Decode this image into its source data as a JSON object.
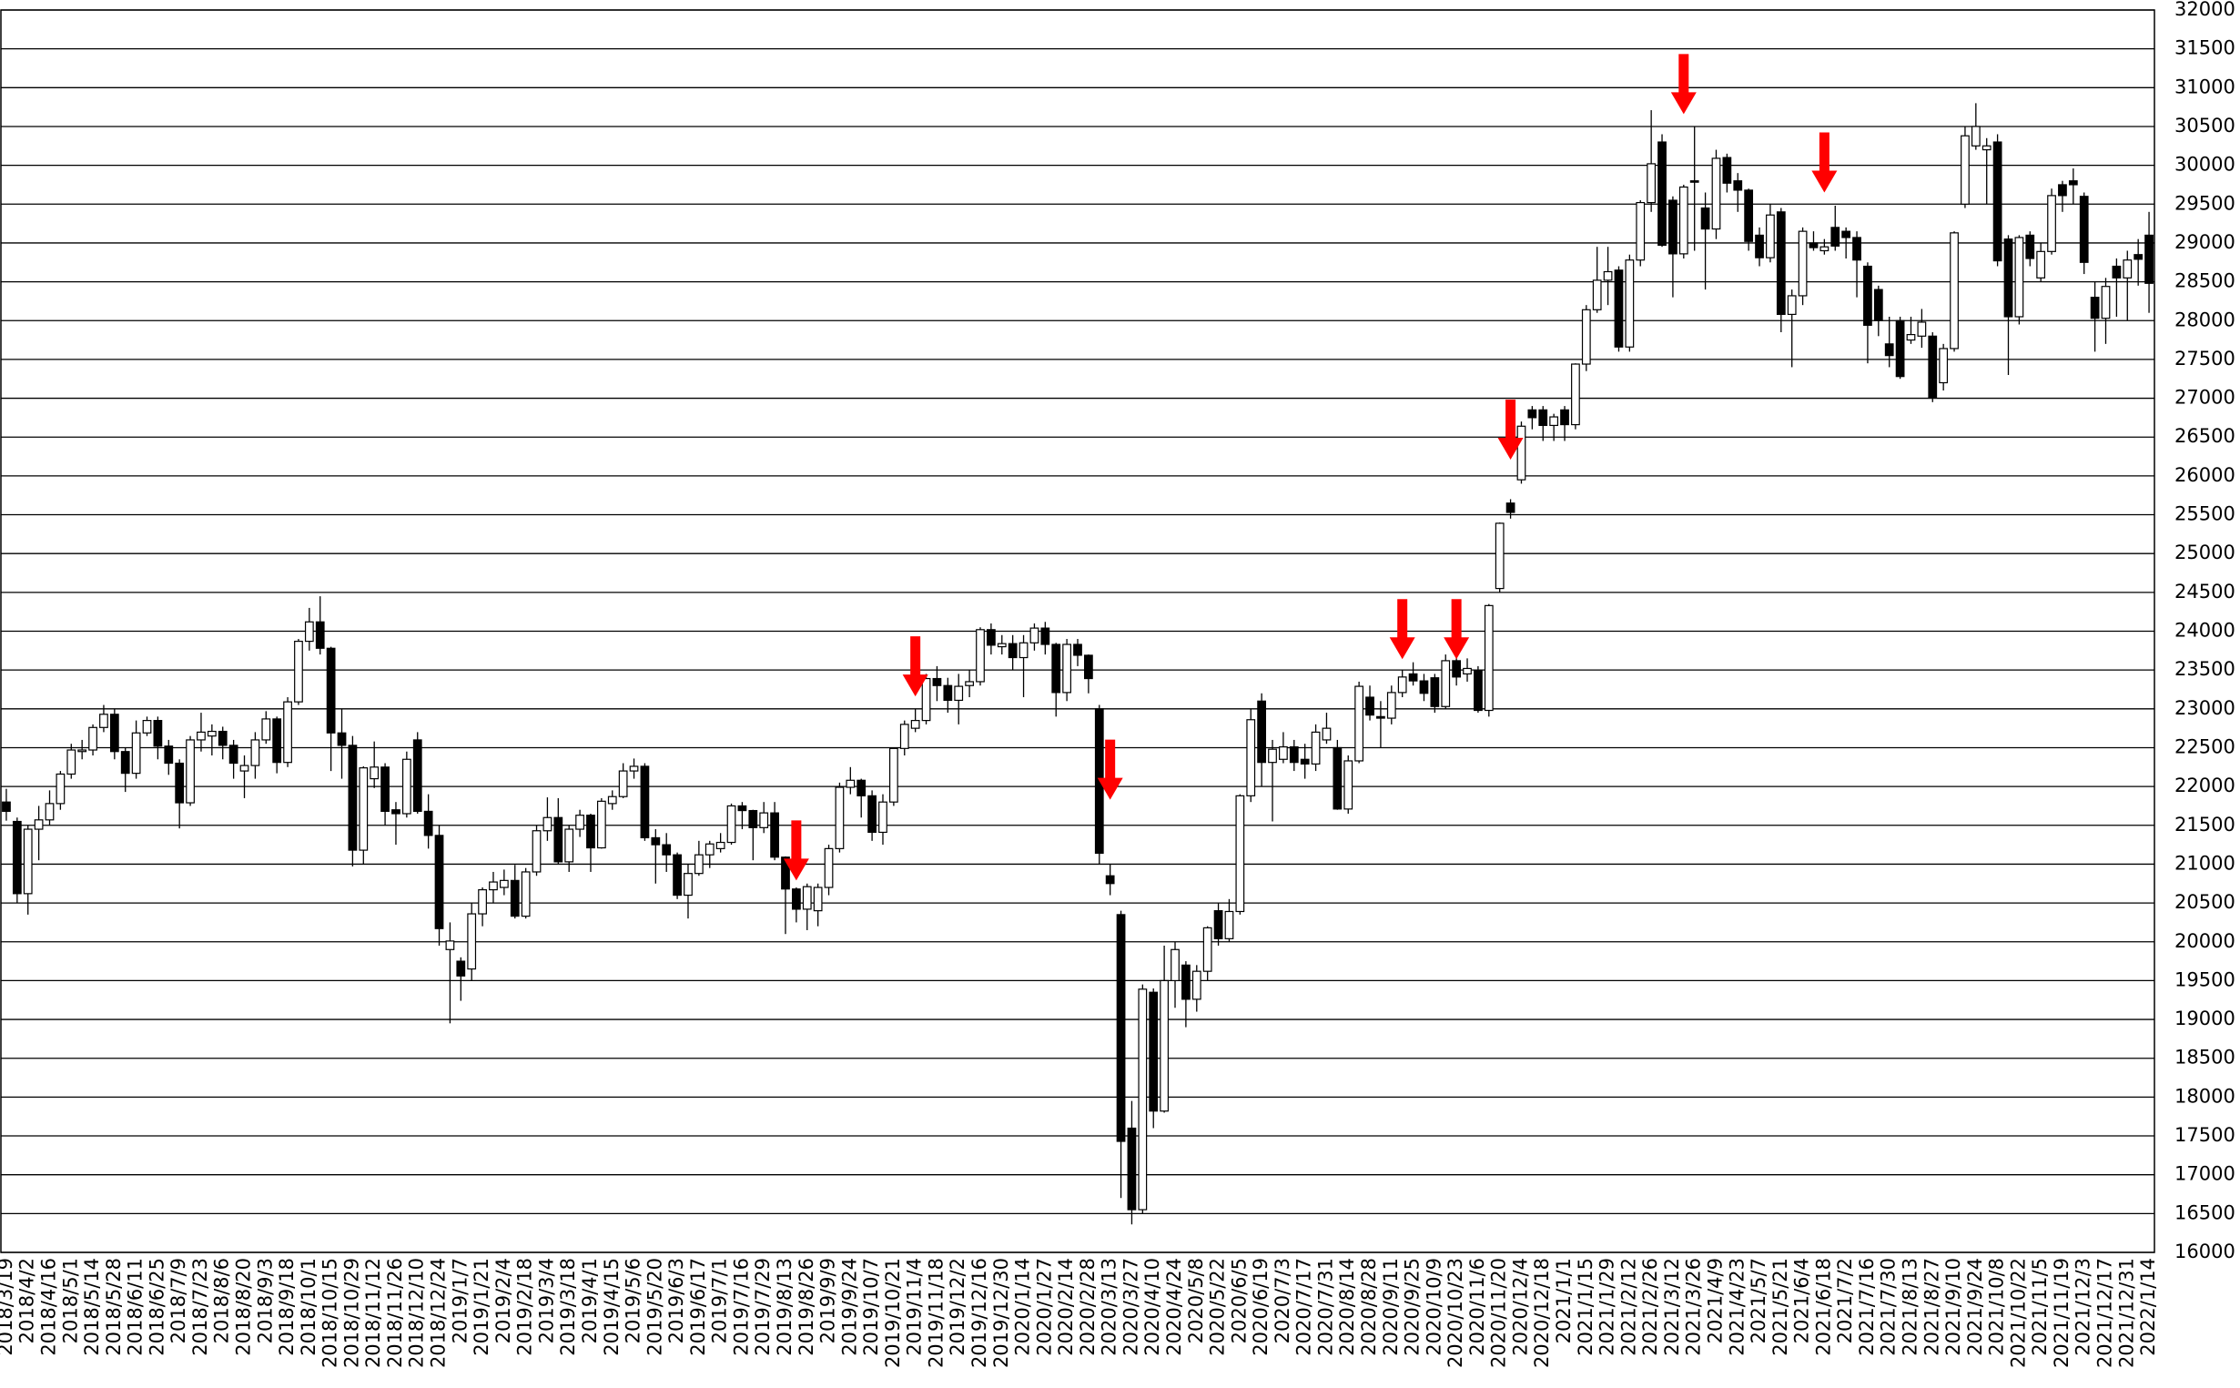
{
  "chart_data": {
    "type": "candlestick",
    "categories": [
      "2018/3/19",
      null,
      "2018/4/2",
      null,
      "2018/4/16",
      null,
      "2018/5/1",
      null,
      "2018/5/14",
      null,
      "2018/5/28",
      null,
      "2018/6/11",
      null,
      "2018/6/25",
      null,
      "2018/7/9",
      null,
      "2018/7/23",
      null,
      "2018/8/6",
      null,
      "2018/8/20",
      null,
      "2018/9/3",
      null,
      "2018/9/18",
      null,
      "2018/10/1",
      null,
      "2018/10/15",
      null,
      "2018/10/29",
      null,
      "2018/11/12",
      null,
      "2018/11/26",
      null,
      "2018/12/10",
      null,
      "2018/12/24",
      null,
      "2019/1/7",
      null,
      "2019/1/21",
      null,
      "2019/2/4",
      null,
      "2019/2/18",
      null,
      "2019/3/4",
      null,
      "2019/3/18",
      null,
      "2019/4/1",
      null,
      "2019/4/15",
      null,
      "2019/5/6",
      null,
      "2019/5/20",
      null,
      "2019/6/3",
      null,
      "2019/6/17",
      null,
      "2019/7/1",
      null,
      "2019/7/16",
      null,
      "2019/7/29",
      null,
      "2019/8/13",
      null,
      "2019/8/26",
      null,
      "2019/9/9",
      null,
      "2019/9/24",
      null,
      "2019/10/7",
      null,
      "2019/10/21",
      null,
      "2019/11/4",
      null,
      "2019/11/18",
      null,
      "2019/12/2",
      null,
      "2019/12/16",
      null,
      "2019/12/30",
      null,
      "2020/1/14",
      null,
      "2020/1/27",
      null,
      "2020/2/14",
      null,
      "2020/2/28",
      null,
      "2020/3/13",
      null,
      "2020/3/27",
      null,
      "2020/4/10",
      null,
      "2020/4/24",
      null,
      "2020/5/8",
      null,
      "2020/5/22",
      null,
      "2020/6/5",
      null,
      "2020/6/19",
      null,
      "2020/7/3",
      null,
      "2020/7/17",
      null,
      "2020/7/31",
      null,
      "2020/8/14",
      null,
      "2020/8/28",
      null,
      "2020/9/11",
      null,
      "2020/9/25",
      null,
      "2020/10/9",
      null,
      "2020/10/23",
      null,
      "2020/11/6",
      null,
      "2020/11/20",
      null,
      "2020/12/4",
      null,
      "2020/12/18",
      null,
      "2021/1/1",
      null,
      "2021/1/15",
      null,
      "2021/1/29",
      null,
      "2021/2/12",
      null,
      "2021/2/26",
      null,
      "2021/3/12",
      null,
      "2021/3/26",
      null,
      "2021/4/9",
      null,
      "2021/4/23",
      null,
      "2021/5/7",
      null,
      "2021/5/21",
      null,
      "2021/6/4",
      null,
      "2021/6/18",
      null,
      "2021/7/2",
      null,
      "2021/7/16",
      null,
      "2021/7/30",
      null,
      "2021/8/13",
      null,
      "2021/8/27",
      null,
      "2021/9/10",
      null,
      "2021/9/24",
      null,
      "2021/10/8",
      null,
      "2021/10/22",
      null,
      "2021/11/5",
      null,
      "2021/11/19",
      null,
      "2021/12/3",
      null,
      "2021/12/17",
      null,
      "2021/12/31",
      null,
      "2022/1/14"
    ],
    "open": [
      21800,
      21550,
      20620,
      21450,
      21570,
      21780,
      22160,
      22450,
      22470,
      22760,
      22930,
      22450,
      22170,
      22690,
      22850,
      22520,
      22300,
      21790,
      22600,
      22650,
      22710,
      22530,
      22200,
      22270,
      22600,
      22870,
      22310,
      23090,
      23870,
      24120,
      23780,
      22690,
      22530,
      21180,
      22100,
      22250,
      21700,
      21650,
      22600,
      21680,
      21370,
      19900,
      19750,
      19650,
      20360,
      20670,
      20700,
      20790,
      20330,
      20900,
      21430,
      21600,
      21030,
      21450,
      21630,
      21210,
      21780,
      21870,
      22200,
      22260,
      21340,
      21250,
      21120,
      20600,
      20880,
      21120,
      21200,
      21280,
      21750,
      21690,
      21470,
      21660,
      21090,
      20680,
      20420,
      20400,
      20700,
      21200,
      21990,
      22080,
      21880,
      21410,
      21800,
      22490,
      22750,
      22850,
      23390,
      23300,
      23110,
      23300,
      23350,
      24020,
      23800,
      23840,
      23660,
      23850,
      24040,
      23830,
      23210,
      23830,
      23690,
      23000,
      20850,
      20350,
      17600,
      16550,
      19350,
      17820,
      19500,
      19700,
      19260,
      19620,
      20400,
      20040,
      20390,
      21880,
      23100,
      22310,
      22350,
      22510,
      22350,
      22290,
      22600,
      22500,
      21710,
      22330,
      23150,
      22900,
      22880,
      23210,
      23450,
      23360,
      23400,
      23030,
      23620,
      23450,
      23500,
      22980,
      24550,
      25650,
      25950,
      26850,
      26850,
      26650,
      26850,
      26660,
      27440,
      28140,
      28520,
      28650,
      27660,
      28780,
      29520,
      30300,
      29550,
      28860,
      29800,
      29450,
      29180,
      30100,
      29800,
      29680,
      29100,
      28810,
      29400,
      28080,
      28320,
      29000,
      28900,
      29200,
      29150,
      29070,
      28700,
      28400,
      27700,
      28000,
      27750,
      27800,
      27800,
      27200,
      27640,
      29500,
      30250,
      30200,
      30300,
      29050,
      28050,
      29100,
      28550,
      28890,
      29750,
      29800,
      29600,
      28300,
      28030,
      28700,
      28550,
      28850,
      29100
    ],
    "high": [
      21970,
      21600,
      21500,
      21750,
      21950,
      22200,
      22550,
      22600,
      22800,
      23050,
      23000,
      22500,
      22850,
      22900,
      22900,
      22600,
      22350,
      22650,
      22950,
      22800,
      22770,
      22600,
      22400,
      22700,
      22970,
      22900,
      23150,
      23900,
      24300,
      24450,
      23800,
      23000,
      22650,
      22260,
      22580,
      22300,
      21800,
      22450,
      22700,
      21900,
      21500,
      20250,
      19800,
      20500,
      20700,
      20900,
      20930,
      20990,
      20950,
      21500,
      21860,
      21850,
      21500,
      21700,
      21650,
      21850,
      21950,
      22300,
      22360,
      22300,
      21450,
      21400,
      21150,
      21000,
      21300,
      21300,
      21400,
      21780,
      21800,
      21700,
      21800,
      21800,
      21100,
      20700,
      20750,
      20750,
      21250,
      22050,
      22250,
      22100,
      21950,
      21900,
      22500,
      22850,
      23000,
      23450,
      23550,
      23400,
      23450,
      23500,
      24050,
      24100,
      23950,
      23950,
      23950,
      24100,
      24120,
      23850,
      23900,
      23900,
      23700,
      23050,
      21000,
      20400,
      17950,
      19450,
      19400,
      19950,
      20000,
      19750,
      19700,
      20200,
      20500,
      20550,
      21900,
      23000,
      23200,
      22600,
      22700,
      22600,
      22550,
      22800,
      22950,
      22600,
      22400,
      23350,
      23300,
      23100,
      23300,
      23500,
      23600,
      23450,
      23450,
      23700,
      23700,
      23650,
      23550,
      24350,
      25400,
      25700,
      26700,
      26900,
      26900,
      26800,
      26900,
      27450,
      28200,
      28950,
      28950,
      28700,
      28850,
      29550,
      30710,
      30400,
      29600,
      29750,
      30500,
      29650,
      30200,
      30150,
      29900,
      29700,
      29200,
      29500,
      29450,
      28400,
      29200,
      29150,
      29050,
      29480,
      29200,
      29150,
      28750,
      28450,
      28050,
      28050,
      28050,
      28150,
      27850,
      27700,
      29150,
      30500,
      30800,
      30350,
      30400,
      29100,
      29100,
      29150,
      29000,
      29700,
      29800,
      29960,
      29650,
      28500,
      28550,
      28800,
      28900,
      29050,
      29400
    ],
    "low": [
      21560,
      20500,
      20350,
      21050,
      21500,
      21700,
      22100,
      22350,
      22400,
      22700,
      22350,
      21930,
      22100,
      22650,
      22350,
      22150,
      21460,
      21750,
      22450,
      22400,
      22350,
      22100,
      21850,
      22100,
      22550,
      22170,
      22250,
      23050,
      23750,
      23700,
      22200,
      22100,
      20970,
      21000,
      21980,
      21500,
      21250,
      21600,
      21650,
      21200,
      19950,
      18950,
      19240,
      19500,
      20200,
      20500,
      20600,
      20300,
      20300,
      20850,
      21300,
      21000,
      20900,
      21350,
      20900,
      21200,
      21700,
      21850,
      22100,
      21300,
      20750,
      20900,
      20550,
      20300,
      20850,
      20950,
      21150,
      21250,
      21450,
      21050,
      21400,
      21050,
      20100,
      20250,
      20150,
      20200,
      20600,
      21150,
      21900,
      21600,
      21300,
      21250,
      21750,
      22400,
      22700,
      22800,
      23100,
      22950,
      22800,
      23150,
      23300,
      23700,
      23700,
      23500,
      23150,
      23750,
      23700,
      22900,
      23100,
      23550,
      23200,
      21000,
      20600,
      16700,
      16360,
      16500,
      17600,
      17800,
      19150,
      18900,
      19100,
      19500,
      19950,
      20000,
      20350,
      21800,
      22000,
      21550,
      22300,
      22200,
      22100,
      22200,
      22550,
      21700,
      21650,
      22300,
      22850,
      22500,
      22800,
      23150,
      23300,
      23100,
      22950,
      23000,
      23300,
      23350,
      22950,
      22900,
      24500,
      25450,
      25900,
      26600,
      26450,
      26450,
      26450,
      26600,
      27350,
      28100,
      28200,
      27600,
      27600,
      28700,
      29400,
      28950,
      28300,
      28800,
      28900,
      28400,
      29050,
      29650,
      29400,
      28900,
      28700,
      28750,
      27850,
      27400,
      28200,
      28900,
      28850,
      28900,
      28800,
      28300,
      27450,
      27800,
      27400,
      27250,
      27700,
      27650,
      26950,
      27100,
      27600,
      29450,
      30200,
      29500,
      28700,
      27300,
      27950,
      28700,
      28500,
      28850,
      29400,
      29500,
      28600,
      27600,
      27700,
      28050,
      28000,
      28450,
      28100
    ],
    "close": [
      21680,
      20620,
      21450,
      21570,
      21780,
      22160,
      22470,
      22470,
      22760,
      22930,
      22450,
      22170,
      22690,
      22850,
      22520,
      22300,
      21790,
      22600,
      22700,
      22710,
      22530,
      22300,
      22270,
      22600,
      22870,
      22310,
      23090,
      23870,
      24120,
      23780,
      22690,
      22530,
      21180,
      22240,
      22250,
      21680,
      21650,
      22350,
      21680,
      21370,
      20170,
      20010,
      19560,
      20360,
      20670,
      20770,
      20790,
      20330,
      20900,
      21430,
      21600,
      21030,
      21450,
      21630,
      21210,
      21810,
      21870,
      22200,
      22260,
      21340,
      21250,
      21120,
      20600,
      20880,
      21120,
      21260,
      21280,
      21750,
      21690,
      21470,
      21660,
      21090,
      20680,
      20420,
      20710,
      20700,
      21200,
      21990,
      22080,
      21880,
      21410,
      21800,
      22490,
      22800,
      22850,
      23390,
      23300,
      23110,
      23290,
      23350,
      24020,
      23820,
      23840,
      23660,
      23850,
      24040,
      23830,
      23210,
      23830,
      23690,
      23390,
      21140,
      20750,
      17430,
      16550,
      19390,
      17820,
      19500,
      19900,
      19260,
      19620,
      20180,
      20040,
      20390,
      21880,
      22860,
      22310,
      22480,
      22510,
      22310,
      22290,
      22700,
      22750,
      21710,
      22330,
      23290,
      22920,
      22880,
      23210,
      23410,
      23360,
      23200,
      23030,
      23620,
      23410,
      23520,
      22980,
      24330,
      25390,
      25530,
      26640,
      26750,
      26650,
      26760,
      26660,
      27440,
      28140,
      28520,
      28630,
      27660,
      28780,
      29520,
      30020,
      28970,
      28860,
      29720,
      29790,
      29180,
      30090,
      29770,
      29680,
      29020,
      28810,
      29360,
      28080,
      28320,
      29150,
      28940,
      28950,
      28960,
      29070,
      28780,
      27940,
      28000,
      27550,
      27280,
      27820,
      27980,
      27010,
      27640,
      29130,
      30380,
      30500,
      30250,
      28770,
      28050,
      29070,
      28800,
      28890,
      29610,
      29610,
      29750,
      28750,
      28030,
      28440,
      28550,
      28780,
      28790,
      28480
    ],
    "up_color": "#ffffff",
    "down_color": "#000000",
    "annotations": [
      {
        "index": 73,
        "value": 20790
      },
      {
        "index": 84,
        "value": 23160
      },
      {
        "index": 102,
        "value": 21830
      },
      {
        "index": 129,
        "value": 23640
      },
      {
        "index": 134,
        "value": 23640
      },
      {
        "index": 139,
        "value": 26210
      },
      {
        "index": 155,
        "value": 30660
      },
      {
        "index": 168,
        "value": 29650
      }
    ],
    "annotation_color": "#ff0000",
    "ylim": [
      16000,
      32000
    ],
    "yticks": [
      16000,
      16500,
      17000,
      17500,
      18000,
      18500,
      19000,
      19500,
      20000,
      20500,
      21000,
      21500,
      22000,
      22500,
      23000,
      23500,
      24000,
      24500,
      25000,
      25500,
      26000,
      26500,
      27000,
      27500,
      28000,
      28500,
      29000,
      29500,
      30000,
      30500,
      31000,
      31500,
      32000
    ],
    "grid": true,
    "y_axis_side": "right"
  }
}
